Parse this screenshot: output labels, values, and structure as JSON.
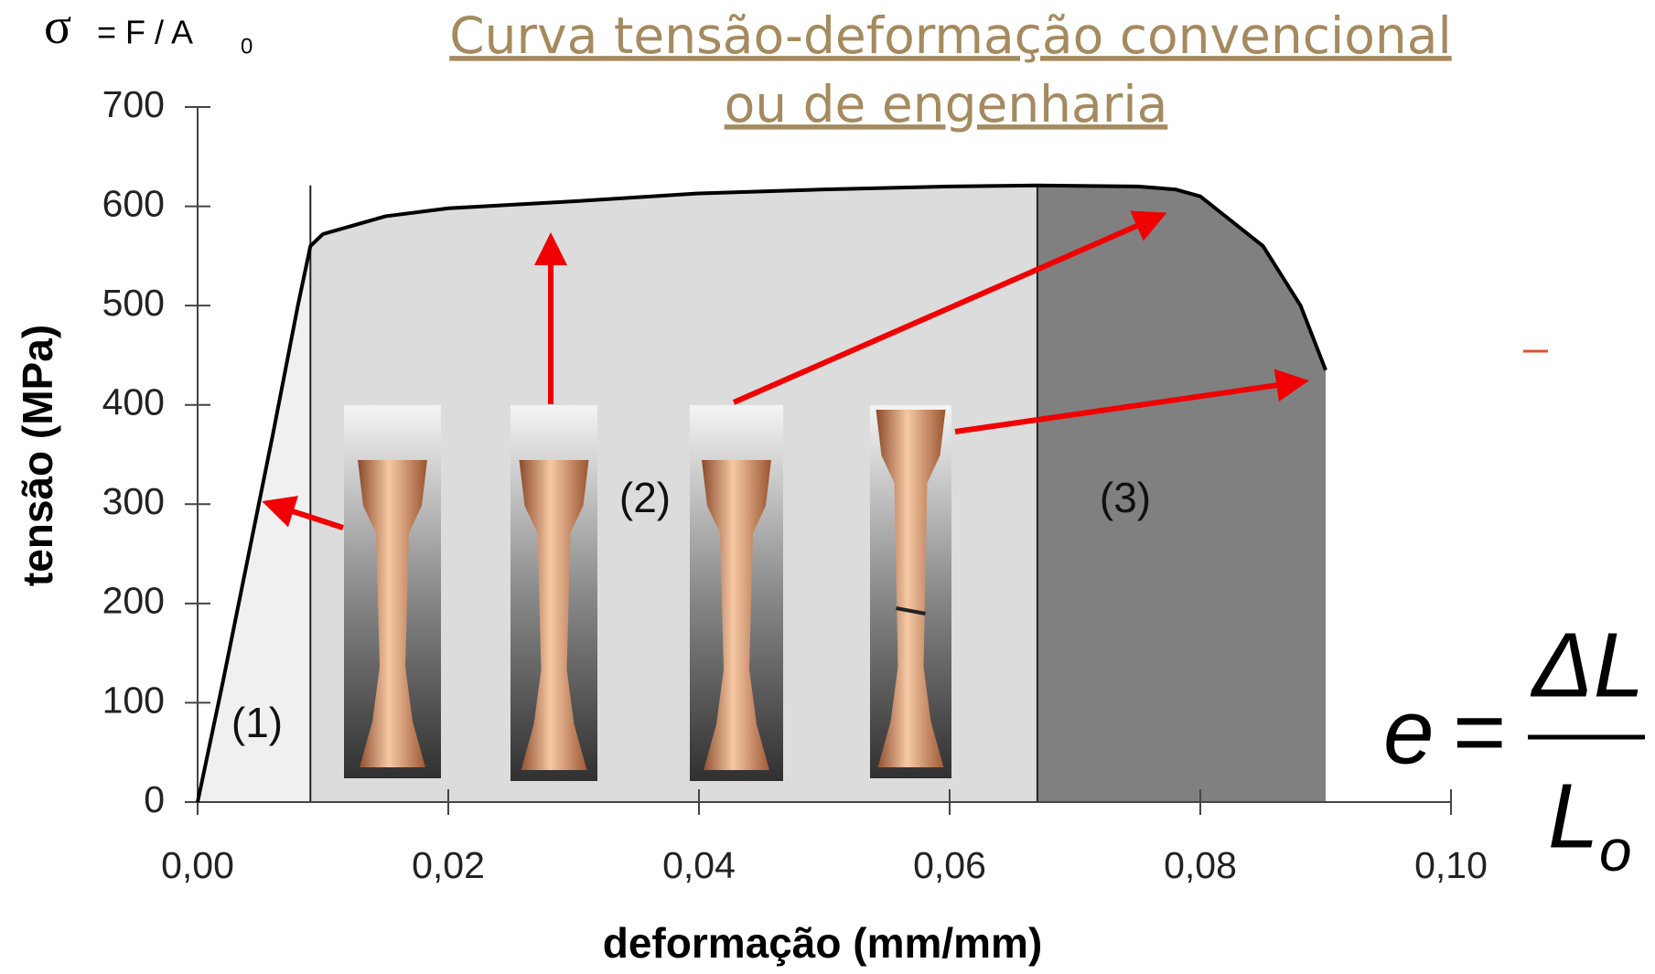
{
  "chart_data": {
    "type": "line",
    "title_lines": [
      "Curva tensão-deformação convencional",
      "ou de engenharia"
    ],
    "title_color": "#a58a5f",
    "x_label": "deformação (mm/mm)",
    "y_label": "tensão (MPa)",
    "x": [
      0,
      0.002,
      0.004,
      0.006,
      0.008,
      0.009,
      0.01,
      0.015,
      0.02,
      0.03,
      0.04,
      0.05,
      0.06,
      0.067,
      0.075,
      0.078,
      0.08,
      0.085,
      0.088,
      0.09
    ],
    "series": [
      {
        "color": "#000000",
        "values": [
          0,
          120,
          245,
          370,
          500,
          560,
          572,
          590,
          598,
          605,
          613,
          617,
          620,
          621,
          620,
          617,
          610,
          560,
          500,
          435
        ]
      }
    ],
    "regions": [
      {
        "label": "(1)",
        "start": 0,
        "end": 0.009,
        "color": "#f0f0f0"
      },
      {
        "label": "(2)",
        "start": 0.009,
        "end": 0.067,
        "color": "#dcdcdc"
      },
      {
        "label": "(3)",
        "start": 0.067,
        "end": 0.09,
        "color": "#808080"
      }
    ],
    "xlim": [
      0,
      0.1
    ],
    "xticks": [
      {
        "value": 0,
        "label": "0,00"
      },
      {
        "value": 0.02,
        "label": "0,02"
      },
      {
        "value": 0.04,
        "label": "0,04"
      },
      {
        "value": 0.06,
        "label": "0,06"
      },
      {
        "value": 0.08,
        "label": "0,08"
      },
      {
        "value": 0.1,
        "label": "0,10"
      }
    ],
    "ylim": [
      0,
      700
    ],
    "yticks": [
      0,
      100,
      200,
      300,
      400,
      500,
      600,
      700
    ],
    "stress_formula": {
      "symbol": "σ",
      "rest": "= F / A",
      "subscript": "0"
    },
    "strain_formula": {
      "lhs": "e",
      "equals": "=",
      "numerator": "ΔL",
      "denominator": "L",
      "subscript": "o"
    }
  }
}
